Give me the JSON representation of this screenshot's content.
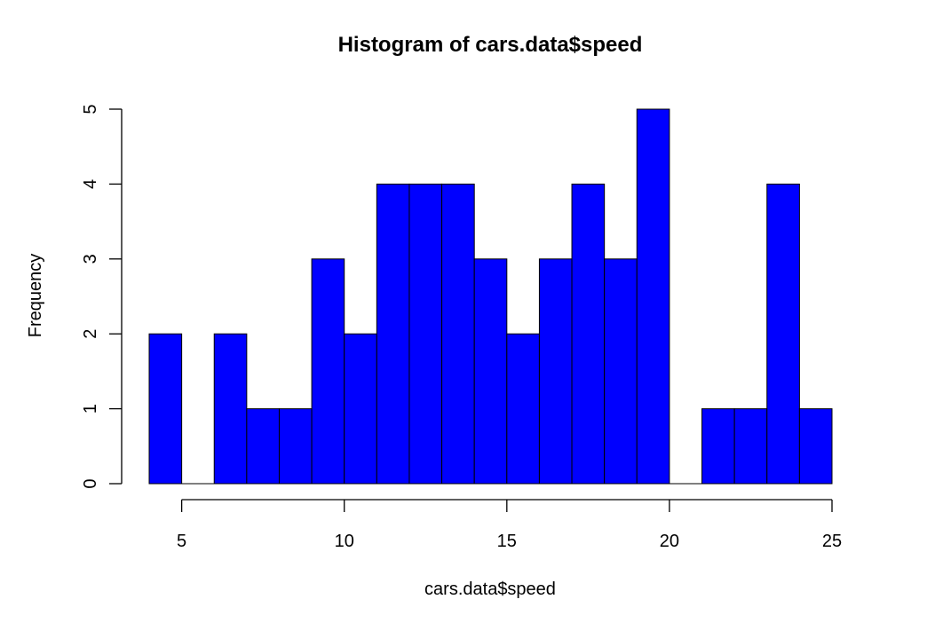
{
  "chart_data": {
    "type": "bar",
    "title": "Histogram of cars.data$speed",
    "xlabel": "cars.data$speed",
    "ylabel": "Frequency",
    "bins": [
      {
        "start": 4,
        "end": 5,
        "count": 2
      },
      {
        "start": 5,
        "end": 6,
        "count": 0
      },
      {
        "start": 6,
        "end": 7,
        "count": 2
      },
      {
        "start": 7,
        "end": 8,
        "count": 1
      },
      {
        "start": 8,
        "end": 9,
        "count": 1
      },
      {
        "start": 9,
        "end": 10,
        "count": 3
      },
      {
        "start": 10,
        "end": 11,
        "count": 2
      },
      {
        "start": 11,
        "end": 12,
        "count": 4
      },
      {
        "start": 12,
        "end": 13,
        "count": 4
      },
      {
        "start": 13,
        "end": 14,
        "count": 4
      },
      {
        "start": 14,
        "end": 15,
        "count": 3
      },
      {
        "start": 15,
        "end": 16,
        "count": 2
      },
      {
        "start": 16,
        "end": 17,
        "count": 3
      },
      {
        "start": 17,
        "end": 18,
        "count": 4
      },
      {
        "start": 18,
        "end": 19,
        "count": 3
      },
      {
        "start": 19,
        "end": 20,
        "count": 5
      },
      {
        "start": 20,
        "end": 21,
        "count": 0
      },
      {
        "start": 21,
        "end": 22,
        "count": 1
      },
      {
        "start": 22,
        "end": 23,
        "count": 1
      },
      {
        "start": 23,
        "end": 24,
        "count": 4
      },
      {
        "start": 24,
        "end": 25,
        "count": 1
      }
    ],
    "xticks": [
      5,
      10,
      15,
      20,
      25
    ],
    "yticks": [
      0,
      1,
      2,
      3,
      4,
      5
    ],
    "xlim": [
      4,
      25
    ],
    "ylim": [
      0,
      5
    ],
    "grid": false,
    "bar_color": "#0000ff",
    "border_color": "#000000"
  }
}
